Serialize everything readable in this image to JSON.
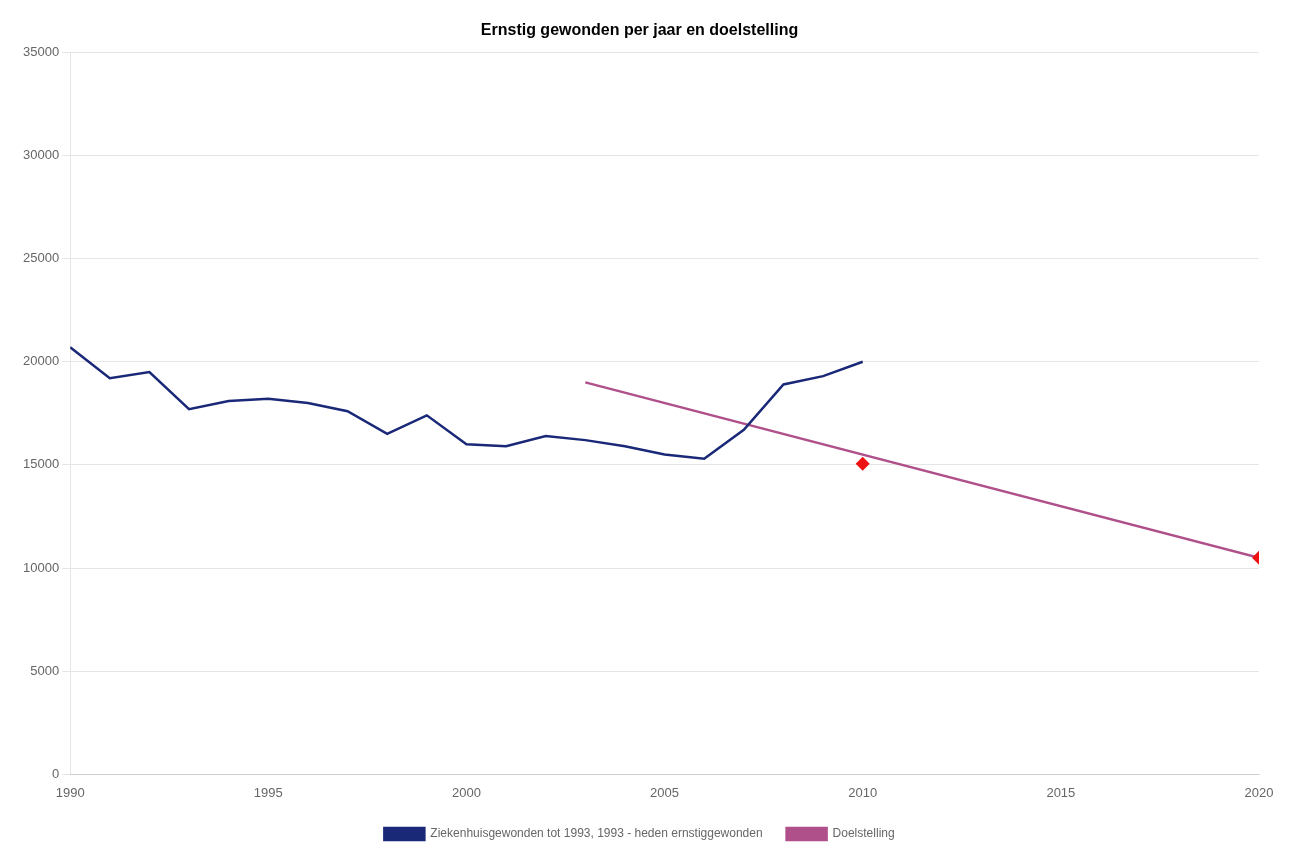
{
  "chart_data": {
    "type": "line",
    "title": "Ernstig gewonden per jaar en doelstelling",
    "series": [
      {
        "name": "Ziekenhuisgewonden tot 1993, 1993 - heden ernstiggewonden",
        "color": "#1A2878",
        "x": [
          1990,
          1991,
          1992,
          1993,
          1994,
          1995,
          1996,
          1997,
          1998,
          1999,
          2000,
          2001,
          2002,
          2003,
          2004,
          2005,
          2006,
          2007,
          2008,
          2009,
          2010
        ],
        "values": [
          20700,
          19200,
          19500,
          17700,
          18100,
          18200,
          18000,
          17600,
          16500,
          17400,
          16000,
          15900,
          16400,
          16200,
          15900,
          15500,
          15300,
          16700,
          18900,
          19300,
          20000
        ]
      },
      {
        "name": "Doelstelling",
        "color": "#B0508A",
        "x": [
          2003,
          2020
        ],
        "values": [
          19000,
          10500
        ]
      },
      {
        "type": "scatter",
        "marker": "diamond",
        "color": "#EE1111",
        "x": [
          2010,
          2020
        ],
        "values": [
          15050,
          10500
        ]
      }
    ],
    "xlim": [
      1990,
      2020
    ],
    "xticks": [
      1990,
      1995,
      2000,
      2005,
      2010,
      2015,
      2020
    ],
    "ylim": [
      0,
      35000
    ],
    "yticks": [
      0,
      5000,
      10000,
      15000,
      20000,
      25000,
      30000,
      35000
    ],
    "grid": "y",
    "legend": "bottom"
  }
}
